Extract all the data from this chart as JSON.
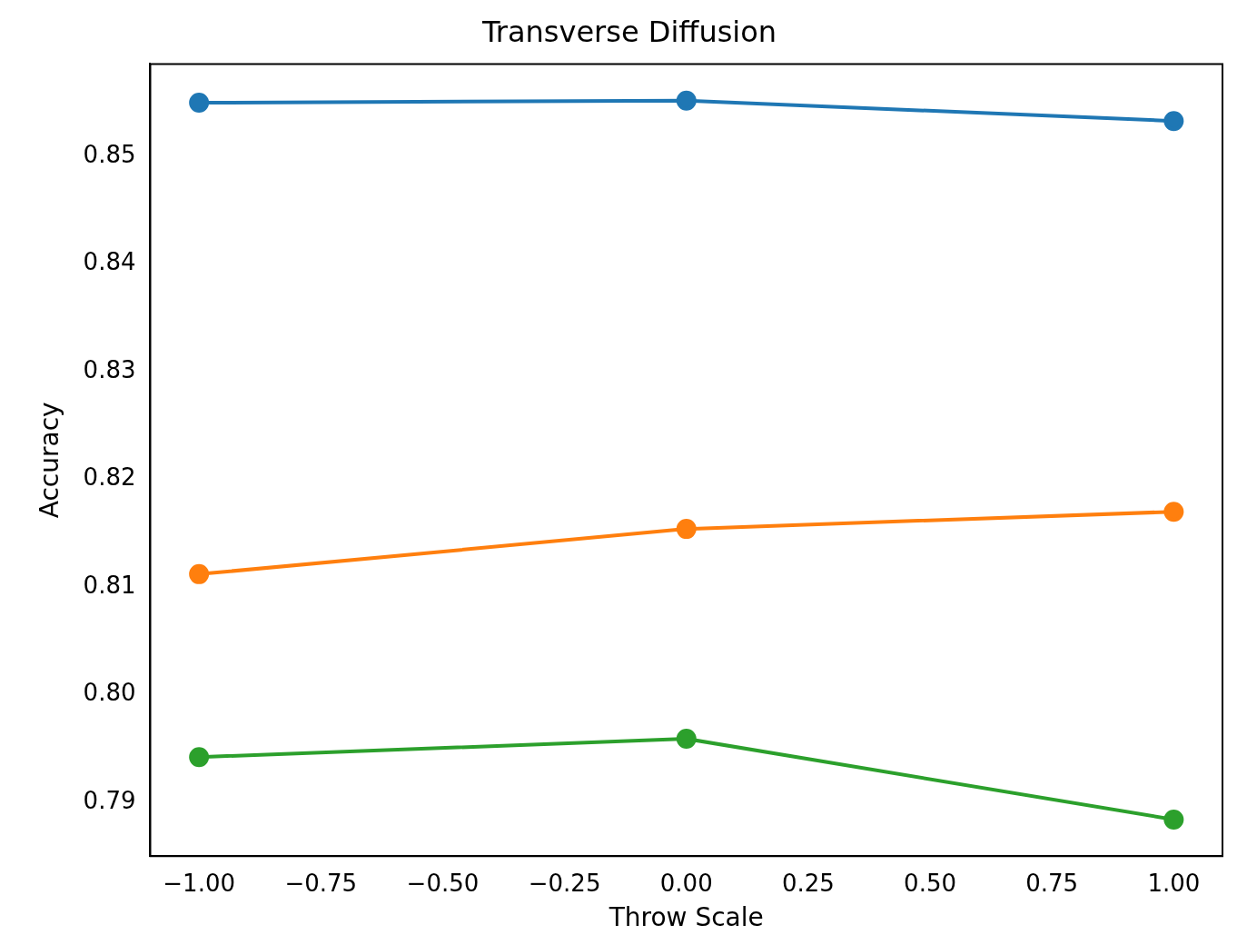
{
  "chart_data": {
    "type": "line",
    "title": "Transverse Diffusion",
    "xlabel": "Throw Scale",
    "ylabel": "Accuracy",
    "x": [
      -1,
      0,
      1
    ],
    "series": [
      {
        "color": "#1f77b4",
        "values": [
          0.855,
          0.8552,
          0.8533
        ]
      },
      {
        "color": "#ff7f0e",
        "values": [
          0.8112,
          0.8154,
          0.817
        ]
      },
      {
        "color": "#2ca02c",
        "values": [
          0.7942,
          0.7959,
          0.7884
        ]
      }
    ],
    "xlim": [
      -1.1,
      1.1
    ],
    "ylim": [
      0.785,
      0.8586
    ],
    "xticks": [
      {
        "value": -1,
        "label": "−1.00"
      },
      {
        "value": -0.75,
        "label": "−0.75"
      },
      {
        "value": -0.5,
        "label": "−0.50"
      },
      {
        "value": -0.25,
        "label": "−0.25"
      },
      {
        "value": 0,
        "label": "0.00"
      },
      {
        "value": 0.25,
        "label": "0.25"
      },
      {
        "value": 0.5,
        "label": "0.50"
      },
      {
        "value": 0.75,
        "label": "0.75"
      },
      {
        "value": 1,
        "label": "1.00"
      }
    ],
    "yticks": [
      {
        "value": 0.79,
        "label": "0.79"
      },
      {
        "value": 0.8,
        "label": "0.80"
      },
      {
        "value": 0.81,
        "label": "0.81"
      },
      {
        "value": 0.82,
        "label": "0.82"
      },
      {
        "value": 0.83,
        "label": "0.83"
      },
      {
        "value": 0.84,
        "label": "0.84"
      },
      {
        "value": 0.85,
        "label": "0.85"
      }
    ],
    "marker": "circle",
    "grid": false,
    "legend": false
  }
}
